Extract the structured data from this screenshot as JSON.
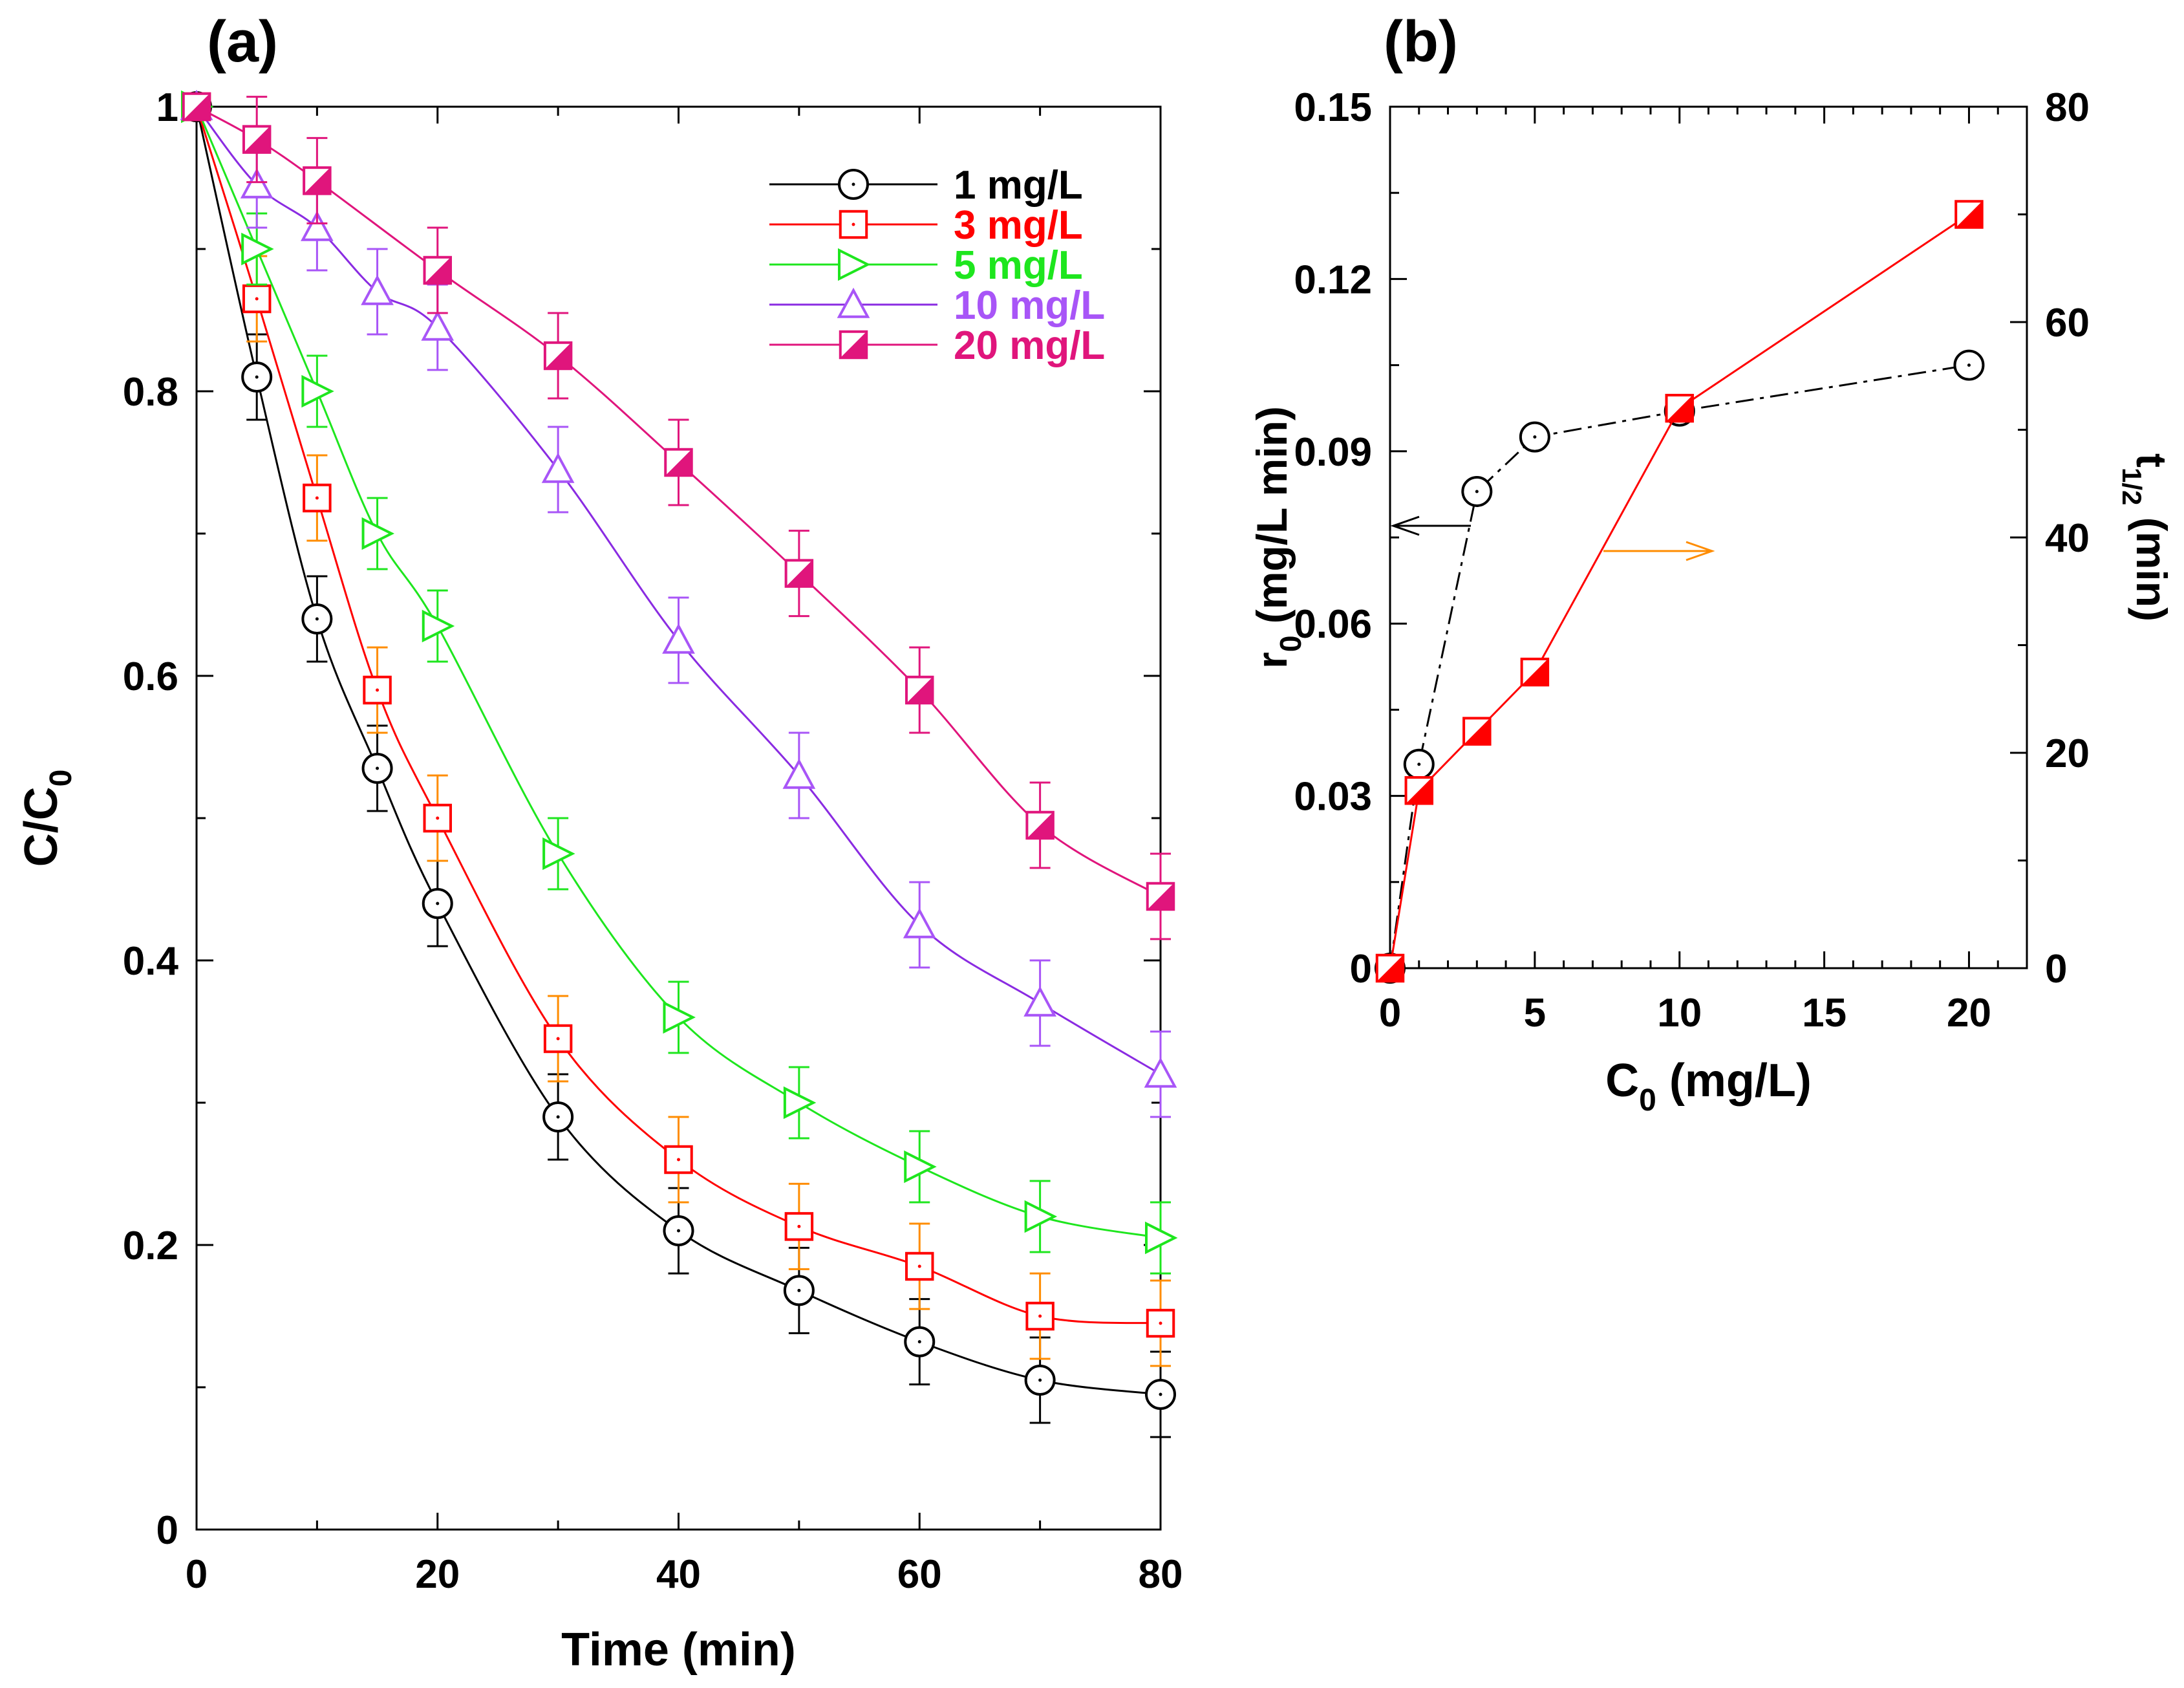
{
  "chart_data": [
    {
      "panel_label": "(a)",
      "type": "line",
      "xlabel": "Time (min)",
      "ylabel": {
        "main": "C/C",
        "sub": "0"
      },
      "xlim": [
        0,
        80
      ],
      "ylim": [
        0,
        1
      ],
      "xticks": [
        0,
        20,
        40,
        60,
        80
      ],
      "xtick_labels": [
        "0",
        "20",
        "40",
        "60",
        "80"
      ],
      "yticks": [
        0,
        0.2,
        0.4,
        0.6,
        0.8,
        1
      ],
      "ytick_labels": [
        "0",
        "0.2",
        "0.4",
        "0.6",
        "0.8",
        "1"
      ],
      "grid": false,
      "legend_position": "top-right",
      "x": [
        0,
        5,
        10,
        15,
        20,
        30,
        40,
        50,
        60,
        70,
        80
      ],
      "series": [
        {
          "name": "1 mg/L",
          "color": "#000000",
          "marker": "circle",
          "values": [
            1.0,
            0.81,
            0.64,
            0.535,
            0.44,
            0.29,
            0.21,
            0.168,
            0.132,
            0.105,
            0.095
          ],
          "error": 0.03
        },
        {
          "name": "3 mg/L",
          "color": "#ff0000",
          "error_color": "#ff8c00",
          "marker": "square",
          "values": [
            1.0,
            0.865,
            0.725,
            0.59,
            0.5,
            0.345,
            0.26,
            0.213,
            0.185,
            0.15,
            0.145
          ],
          "error": 0.03
        },
        {
          "name": "5 mg/L",
          "color": "#1ee61e",
          "marker": "triangle-right",
          "values": [
            1.0,
            0.9,
            0.8,
            0.7,
            0.635,
            0.475,
            0.36,
            0.3,
            0.255,
            0.22,
            0.205
          ],
          "error": 0.025
        },
        {
          "name": "10 mg/L",
          "color": "#a855f7",
          "line_color": "#8a2be2",
          "marker": "triangle-up",
          "values": [
            1.0,
            0.945,
            0.915,
            0.87,
            0.845,
            0.745,
            0.625,
            0.53,
            0.425,
            0.37,
            0.32
          ],
          "error": 0.03
        },
        {
          "name": "20 mg/L",
          "color": "#e0157c",
          "marker": "half-square",
          "values": [
            1.0,
            0.977,
            0.948,
            null,
            0.885,
            0.825,
            0.75,
            0.672,
            0.59,
            0.495,
            0.445
          ],
          "error": 0.03
        }
      ]
    },
    {
      "panel_label": "(b)",
      "type": "line",
      "xlabel": {
        "main": "C",
        "sub": "0",
        "rest": " (mg/L)"
      },
      "ylabel_left": {
        "main": "r",
        "sub": "0",
        "rest": " (mg/L min)"
      },
      "ylabel_right": {
        "main": "t",
        "sub": "1/2",
        "rest": " (min)"
      },
      "xlim": [
        0,
        22
      ],
      "ylim_left": [
        0,
        0.15
      ],
      "ylim_right": [
        0,
        80
      ],
      "xticks": [
        0,
        5,
        10,
        15,
        20
      ],
      "xtick_labels": [
        "0",
        "5",
        "10",
        "15",
        "20"
      ],
      "yticks_left": [
        0,
        0.03,
        0.06,
        0.09,
        0.12,
        0.15
      ],
      "ytick_labels_left": [
        "0",
        "0.03",
        "0.06",
        "0.09",
        "0.12",
        "0.15"
      ],
      "yticks_right": [
        0,
        20,
        40,
        60,
        80
      ],
      "ytick_labels_right": [
        "0",
        "20",
        "40",
        "60",
        "80"
      ],
      "grid": false,
      "series": [
        {
          "axis": "left",
          "color": "#000000",
          "marker": "circle",
          "line": "dash-dot",
          "x": [
            0,
            1,
            3,
            5,
            10,
            20
          ],
          "values": [
            0,
            0.0355,
            0.083,
            0.0925,
            0.097,
            0.105
          ]
        },
        {
          "axis": "right",
          "color": "#ff0000",
          "marker": "half-square",
          "line": "solid",
          "x": [
            0,
            1,
            3,
            5,
            10,
            20
          ],
          "values": [
            0,
            16.5,
            22,
            27.5,
            52,
            70
          ]
        }
      ],
      "arrows": [
        {
          "direction": "left",
          "color": "#000000",
          "axis": "left"
        },
        {
          "direction": "right",
          "color": "#ff8c00",
          "axis": "right"
        }
      ]
    }
  ]
}
